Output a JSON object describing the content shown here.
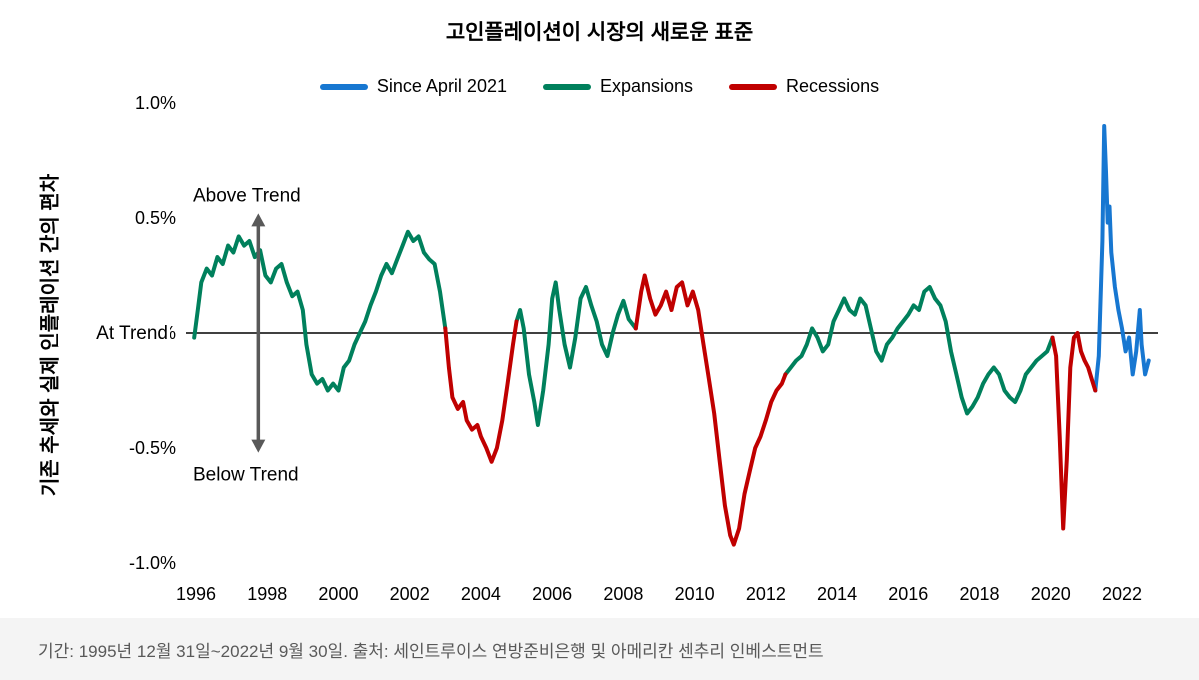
{
  "colors": {
    "blue": "#1777D1",
    "green": "#00805C",
    "red": "#C00000",
    "annotation": "#595959",
    "zero_line": "#000000",
    "footer_text": "#595959"
  },
  "footer": {
    "note": "기간: 1995년 12월 31일~2022년 9월 30일. 출처: 세인트루이스 연방준비은행 및 아메리칸 센추리 인베스트먼트"
  },
  "chart_data": {
    "type": "line",
    "title": "고인플레이션이 시장의 새로운 표준",
    "ylabel": "기존 추세와 실제 인플레이션 간의 편차",
    "xlabel": "",
    "ylim": [
      -1.0,
      1.0
    ],
    "x_range": [
      1995.9,
      2022.8
    ],
    "grid": false,
    "legend_position": "top-center",
    "yticks": [
      {
        "v": 1.0,
        "label": "1.0%"
      },
      {
        "v": 0.5,
        "label": "0.5%"
      },
      {
        "v": 0.0,
        "label": "0.0%"
      },
      {
        "v": -0.5,
        "label": "-0.5%"
      },
      {
        "v": -1.0,
        "label": "-1.0%"
      }
    ],
    "xticks": [
      1996,
      1998,
      2000,
      2002,
      2004,
      2006,
      2008,
      2010,
      2012,
      2014,
      2016,
      2018,
      2020,
      2022
    ],
    "annotations": {
      "above": "Above Trend",
      "at": "At Trend",
      "below": "Below Trend",
      "arrow_x_year": 1997.75,
      "arrow_top_value": 0.52,
      "arrow_bottom_value": -0.52
    },
    "series": [
      {
        "name": "Since April 2021",
        "key": "since-april-2021",
        "color_key": "blue",
        "segments": [
          [
            [
              2021.25,
              -0.25
            ],
            [
              2021.35,
              -0.1
            ],
            [
              2021.45,
              0.4
            ],
            [
              2021.5,
              0.9
            ],
            [
              2021.55,
              0.7
            ],
            [
              2021.6,
              0.48
            ],
            [
              2021.65,
              0.55
            ],
            [
              2021.7,
              0.35
            ],
            [
              2021.8,
              0.2
            ],
            [
              2021.9,
              0.1
            ],
            [
              2022.0,
              0.02
            ],
            [
              2022.1,
              -0.08
            ],
            [
              2022.2,
              -0.02
            ],
            [
              2022.3,
              -0.18
            ],
            [
              2022.4,
              -0.08
            ],
            [
              2022.5,
              0.1
            ],
            [
              2022.55,
              -0.05
            ],
            [
              2022.65,
              -0.18
            ],
            [
              2022.75,
              -0.12
            ]
          ]
        ]
      },
      {
        "name": "Expansions",
        "key": "expansions",
        "color_key": "green",
        "segments": [
          [
            [
              1995.95,
              -0.02
            ],
            [
              1996.05,
              0.1
            ],
            [
              1996.15,
              0.22
            ],
            [
              1996.3,
              0.28
            ],
            [
              1996.45,
              0.25
            ],
            [
              1996.6,
              0.33
            ],
            [
              1996.75,
              0.3
            ],
            [
              1996.9,
              0.38
            ],
            [
              1997.05,
              0.35
            ],
            [
              1997.2,
              0.42
            ],
            [
              1997.35,
              0.38
            ],
            [
              1997.5,
              0.4
            ],
            [
              1997.65,
              0.33
            ],
            [
              1997.8,
              0.36
            ],
            [
              1997.95,
              0.25
            ],
            [
              1998.1,
              0.22
            ],
            [
              1998.25,
              0.28
            ],
            [
              1998.4,
              0.3
            ],
            [
              1998.55,
              0.22
            ],
            [
              1998.7,
              0.16
            ],
            [
              1998.85,
              0.18
            ],
            [
              1999.0,
              0.1
            ],
            [
              1999.1,
              -0.05
            ],
            [
              1999.25,
              -0.18
            ],
            [
              1999.4,
              -0.22
            ],
            [
              1999.55,
              -0.2
            ],
            [
              1999.7,
              -0.25
            ],
            [
              1999.85,
              -0.22
            ],
            [
              2000.0,
              -0.25
            ],
            [
              2000.15,
              -0.15
            ],
            [
              2000.3,
              -0.12
            ],
            [
              2000.45,
              -0.05
            ],
            [
              2000.6,
              0.0
            ],
            [
              2000.75,
              0.05
            ],
            [
              2000.9,
              0.12
            ],
            [
              2001.05,
              0.18
            ],
            [
              2001.2,
              0.25
            ],
            [
              2001.35,
              0.3
            ],
            [
              2001.5,
              0.26
            ],
            [
              2001.65,
              0.32
            ],
            [
              2001.8,
              0.38
            ],
            [
              2001.95,
              0.44
            ],
            [
              2002.1,
              0.4
            ],
            [
              2002.25,
              0.42
            ],
            [
              2002.4,
              0.35
            ],
            [
              2002.55,
              0.32
            ],
            [
              2002.7,
              0.3
            ],
            [
              2002.85,
              0.18
            ],
            [
              2003.0,
              0.02
            ]
          ],
          [
            [
              2005.0,
              0.05
            ],
            [
              2005.1,
              0.1
            ],
            [
              2005.2,
              0.02
            ],
            [
              2005.35,
              -0.18
            ],
            [
              2005.5,
              -0.3
            ],
            [
              2005.6,
              -0.4
            ],
            [
              2005.75,
              -0.25
            ],
            [
              2005.9,
              -0.05
            ],
            [
              2006.0,
              0.15
            ],
            [
              2006.1,
              0.22
            ],
            [
              2006.2,
              0.1
            ],
            [
              2006.35,
              -0.05
            ],
            [
              2006.5,
              -0.15
            ],
            [
              2006.65,
              -0.02
            ],
            [
              2006.8,
              0.15
            ],
            [
              2006.95,
              0.2
            ],
            [
              2007.1,
              0.12
            ],
            [
              2007.25,
              0.05
            ],
            [
              2007.4,
              -0.05
            ],
            [
              2007.55,
              -0.1
            ],
            [
              2007.7,
              0.0
            ],
            [
              2007.85,
              0.08
            ],
            [
              2008.0,
              0.14
            ],
            [
              2008.15,
              0.06
            ],
            [
              2008.35,
              0.02
            ]
          ],
          [
            [
              2012.55,
              -0.18
            ],
            [
              2012.7,
              -0.15
            ],
            [
              2012.85,
              -0.12
            ],
            [
              2013.0,
              -0.1
            ],
            [
              2013.15,
              -0.05
            ],
            [
              2013.3,
              0.02
            ],
            [
              2013.45,
              -0.02
            ],
            [
              2013.6,
              -0.08
            ],
            [
              2013.75,
              -0.05
            ],
            [
              2013.9,
              0.05
            ],
            [
              2014.05,
              0.1
            ],
            [
              2014.2,
              0.15
            ],
            [
              2014.35,
              0.1
            ],
            [
              2014.5,
              0.08
            ],
            [
              2014.65,
              0.15
            ],
            [
              2014.8,
              0.12
            ],
            [
              2014.95,
              0.02
            ],
            [
              2015.1,
              -0.08
            ],
            [
              2015.25,
              -0.12
            ],
            [
              2015.4,
              -0.05
            ],
            [
              2015.55,
              -0.02
            ],
            [
              2015.7,
              0.02
            ],
            [
              2015.85,
              0.05
            ],
            [
              2016.0,
              0.08
            ],
            [
              2016.15,
              0.12
            ],
            [
              2016.3,
              0.1
            ],
            [
              2016.45,
              0.18
            ],
            [
              2016.6,
              0.2
            ],
            [
              2016.75,
              0.15
            ],
            [
              2016.9,
              0.12
            ],
            [
              2017.05,
              0.05
            ],
            [
              2017.2,
              -0.08
            ],
            [
              2017.35,
              -0.18
            ],
            [
              2017.5,
              -0.28
            ],
            [
              2017.65,
              -0.35
            ],
            [
              2017.8,
              -0.32
            ],
            [
              2017.95,
              -0.28
            ],
            [
              2018.1,
              -0.22
            ],
            [
              2018.25,
              -0.18
            ],
            [
              2018.4,
              -0.15
            ],
            [
              2018.55,
              -0.18
            ],
            [
              2018.7,
              -0.25
            ],
            [
              2018.85,
              -0.28
            ],
            [
              2019.0,
              -0.3
            ],
            [
              2019.15,
              -0.25
            ],
            [
              2019.3,
              -0.18
            ],
            [
              2019.45,
              -0.15
            ],
            [
              2019.6,
              -0.12
            ],
            [
              2019.75,
              -0.1
            ],
            [
              2019.9,
              -0.08
            ],
            [
              2020.05,
              -0.02
            ]
          ]
        ]
      },
      {
        "name": "Recessions",
        "key": "recessions",
        "color_key": "red",
        "segments": [
          [
            [
              2003.0,
              0.02
            ],
            [
              2003.1,
              -0.15
            ],
            [
              2003.2,
              -0.28
            ],
            [
              2003.35,
              -0.33
            ],
            [
              2003.5,
              -0.3
            ],
            [
              2003.6,
              -0.38
            ],
            [
              2003.75,
              -0.42
            ],
            [
              2003.9,
              -0.4
            ],
            [
              2004.0,
              -0.45
            ],
            [
              2004.15,
              -0.5
            ],
            [
              2004.3,
              -0.56
            ],
            [
              2004.45,
              -0.5
            ],
            [
              2004.6,
              -0.38
            ],
            [
              2004.75,
              -0.22
            ],
            [
              2004.9,
              -0.05
            ],
            [
              2005.0,
              0.05
            ]
          ],
          [
            [
              2008.35,
              0.02
            ],
            [
              2008.5,
              0.18
            ],
            [
              2008.6,
              0.25
            ],
            [
              2008.75,
              0.15
            ],
            [
              2008.9,
              0.08
            ],
            [
              2009.05,
              0.12
            ],
            [
              2009.2,
              0.18
            ],
            [
              2009.35,
              0.1
            ],
            [
              2009.5,
              0.2
            ],
            [
              2009.65,
              0.22
            ],
            [
              2009.8,
              0.12
            ],
            [
              2009.95,
              0.18
            ],
            [
              2010.1,
              0.1
            ],
            [
              2010.25,
              -0.05
            ],
            [
              2010.4,
              -0.2
            ],
            [
              2010.55,
              -0.35
            ],
            [
              2010.7,
              -0.55
            ],
            [
              2010.85,
              -0.75
            ],
            [
              2011.0,
              -0.88
            ],
            [
              2011.1,
              -0.92
            ],
            [
              2011.25,
              -0.85
            ],
            [
              2011.4,
              -0.7
            ],
            [
              2011.55,
              -0.6
            ],
            [
              2011.7,
              -0.5
            ],
            [
              2011.85,
              -0.45
            ],
            [
              2012.0,
              -0.38
            ],
            [
              2012.15,
              -0.3
            ],
            [
              2012.3,
              -0.25
            ],
            [
              2012.45,
              -0.22
            ],
            [
              2012.55,
              -0.18
            ]
          ],
          [
            [
              2020.05,
              -0.02
            ],
            [
              2020.15,
              -0.1
            ],
            [
              2020.25,
              -0.45
            ],
            [
              2020.35,
              -0.85
            ],
            [
              2020.45,
              -0.55
            ],
            [
              2020.55,
              -0.15
            ],
            [
              2020.65,
              -0.02
            ],
            [
              2020.75,
              0.0
            ],
            [
              2020.85,
              -0.08
            ],
            [
              2020.95,
              -0.12
            ],
            [
              2021.05,
              -0.15
            ],
            [
              2021.15,
              -0.2
            ],
            [
              2021.25,
              -0.25
            ]
          ]
        ]
      }
    ]
  }
}
